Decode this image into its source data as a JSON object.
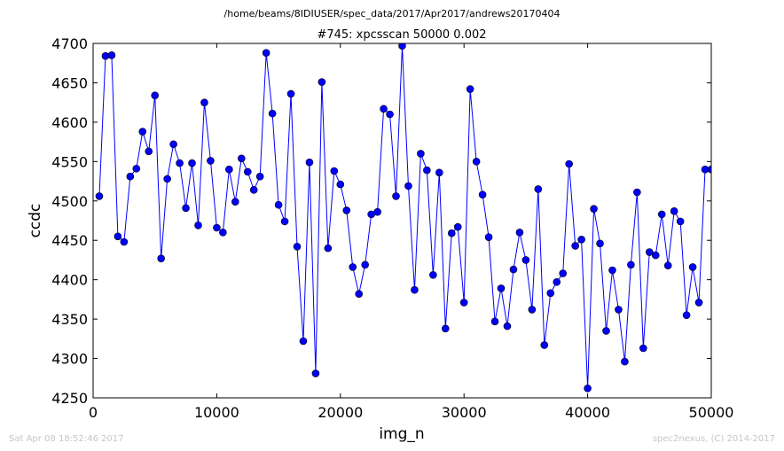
{
  "footer": {
    "timestamp": "Sat Apr 08 18:52:46 2017",
    "credit": "spec2nexus, (C) 2014-2017"
  },
  "chart_data": {
    "type": "line",
    "suptitle": "/home/beams/8IDIUSER/spec_data/2017/Apr2017/andrews20170404",
    "title": "#745: xpcsscan 50000 0.002",
    "xlabel": "img_n",
    "ylabel": "ccdc",
    "xlim": [
      0,
      50000
    ],
    "ylim": [
      4250,
      4700
    ],
    "xticks": [
      0,
      10000,
      20000,
      30000,
      40000,
      50000
    ],
    "yticks": [
      4250,
      4300,
      4350,
      4400,
      4450,
      4500,
      4550,
      4600,
      4650,
      4700
    ],
    "grid": false,
    "legend": "none",
    "line_color": "#0000ff",
    "marker": "circle",
    "series": [
      {
        "x": [
          500,
          1000,
          1500,
          2000,
          2500,
          3000,
          3500,
          4000,
          4500,
          5000,
          5500,
          6000,
          6500,
          7000,
          7500,
          8000,
          8500,
          9000,
          9500,
          10000,
          10500,
          11000,
          11500,
          12000,
          12500,
          13000,
          13500,
          14000,
          14500,
          15000,
          15500,
          16000,
          16500,
          17000,
          17500,
          18000,
          18500,
          19000,
          19500,
          20000,
          20500,
          21000,
          21500,
          22000,
          22500,
          23000,
          23500,
          24000,
          24500,
          25000,
          25500,
          26000,
          26500,
          27000,
          27500,
          28000,
          28500,
          29000,
          29500,
          30000,
          30500,
          31000,
          31500,
          32000,
          32500,
          33000,
          33500,
          34000,
          34500,
          35000,
          35500,
          36000,
          36500,
          37000,
          37500,
          38000,
          38500,
          39000,
          39500,
          40000,
          40500,
          41000,
          41500,
          42000,
          42500,
          43000,
          43500,
          44000,
          44500,
          45000,
          45500,
          46000,
          46500,
          47000,
          47500,
          48000,
          48500,
          49000,
          49500,
          50000
        ],
        "values": [
          4506,
          4684,
          4685,
          4455,
          4448,
          4531,
          4541,
          4588,
          4563,
          4634,
          4427,
          4528,
          4572,
          4548,
          4491,
          4548,
          4469,
          4625,
          4551,
          4466,
          4460,
          4540,
          4499,
          4554,
          4537,
          4514,
          4531,
          4688,
          4611,
          4495,
          4474,
          4636,
          4442,
          4322,
          4549,
          4281,
          4651,
          4440,
          4538,
          4521,
          4488,
          4416,
          4382,
          4419,
          4483,
          4486,
          4617,
          4610,
          4506,
          4697,
          4519,
          4387,
          4560,
          4539,
          4406,
          4536,
          4338,
          4459,
          4467,
          4371,
          4642,
          4550,
          4508,
          4454,
          4347,
          4389,
          4341,
          4413,
          4460,
          4425,
          4362,
          4515,
          4317,
          4383,
          4397,
          4408,
          4547,
          4443,
          4451,
          4262,
          4490,
          4446,
          4335,
          4412,
          4362,
          4296,
          4419,
          4511,
          4313,
          4435,
          4431,
          4483,
          4418,
          4487,
          4474,
          4355,
          4416,
          4371,
          4540,
          4540
        ]
      }
    ]
  }
}
